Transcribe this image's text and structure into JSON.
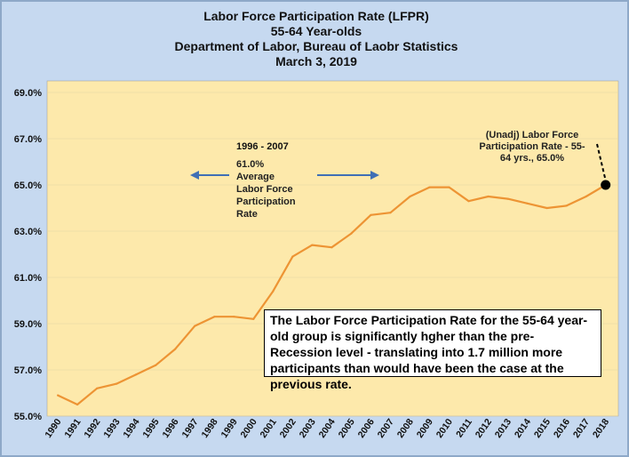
{
  "chart_data": {
    "type": "line",
    "title_lines": [
      "Labor Force Participation Rate (LFPR)",
      "55-64 Year-olds",
      "Department of Labor, Bureau of Laobr Statistics",
      "March 3, 2019"
    ],
    "x": [
      1990,
      1991,
      1992,
      1993,
      1994,
      1995,
      1996,
      1997,
      1998,
      1999,
      2000,
      2001,
      2002,
      2003,
      2004,
      2005,
      2006,
      2007,
      2008,
      2009,
      2010,
      2011,
      2012,
      2013,
      2014,
      2015,
      2016,
      2017,
      2018
    ],
    "x_tick_labels": [
      "1990",
      "1991",
      "1992",
      "1993",
      "1994",
      "1995",
      "1996",
      "1997",
      "1998",
      "1999",
      "2000",
      "2001",
      "2002",
      "2003",
      "2004",
      "2005",
      "2006",
      "2007",
      "2008",
      "2009",
      "2010",
      "2011",
      "2012",
      "2013",
      "2014",
      "2015",
      "2016",
      "2017",
      "2018"
    ],
    "values": [
      55.9,
      55.5,
      56.2,
      56.4,
      56.8,
      57.2,
      57.9,
      58.9,
      59.3,
      59.3,
      59.2,
      60.4,
      61.9,
      62.4,
      62.3,
      62.9,
      63.7,
      63.8,
      64.5,
      64.9,
      64.9,
      64.3,
      64.5,
      64.4,
      64.2,
      64.0,
      64.1,
      64.5,
      65.0
    ],
    "ylim": [
      55.0,
      69.5
    ],
    "y_ticks": [
      55,
      57,
      59,
      61,
      63,
      65,
      67,
      69
    ],
    "y_tick_labels": [
      "55.0%",
      "57.0%",
      "59.0%",
      "61.0%",
      "63.0%",
      "65.0%",
      "67.0%",
      "69.0%"
    ],
    "line_color": "#ed9434",
    "plot_bg": "#fde9ab",
    "annotations": {
      "period_label": "1996 - 2007",
      "average_lines": [
        "61.0%",
        "Average",
        "Labor Force",
        "Participation",
        "Rate"
      ],
      "endpoint_lines": [
        "(Unadj) Labor Force",
        "Participation Rate - 55-",
        "64 yrs., 65.0%"
      ],
      "callout_text": "The Labor Force Participation Rate for the 55-64 year-old group is significantly hgher than the pre-Recession level - translating into 1.7 million more participants than would have been the case at the previous rate."
    }
  }
}
